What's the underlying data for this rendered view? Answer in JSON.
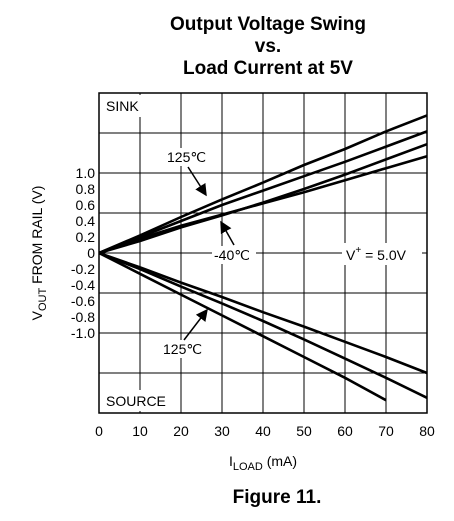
{
  "chart_data": {
    "type": "line",
    "title": [
      "Output Voltage Swing",
      "vs.",
      "Load Current at 5V"
    ],
    "xlabel": {
      "main": "I",
      "sub": "LOAD",
      "rest": " (mA)"
    },
    "ylabel": {
      "main": "V",
      "sub": "OUT",
      "rest": " FROM RAIL (V)"
    },
    "caption": "Figure 11.",
    "x": [
      0,
      10,
      20,
      30,
      40,
      50,
      60,
      70,
      80
    ],
    "series": [
      {
        "color": "#000000",
        "values": [
          0,
          0.22,
          0.45,
          0.67,
          0.88,
          1.1,
          1.3,
          1.52,
          1.72
        ]
      },
      {
        "color": "#000000",
        "values": [
          0,
          0.2,
          0.4,
          0.6,
          0.78,
          0.96,
          1.14,
          1.33,
          1.52
        ]
      },
      {
        "color": "#000000",
        "values": [
          0,
          0.15,
          0.32,
          0.47,
          0.63,
          0.8,
          0.98,
          1.17,
          1.36
        ]
      },
      {
        "color": "#000000",
        "values": [
          0,
          0.18,
          0.34,
          0.48,
          0.62,
          0.76,
          0.91,
          1.06,
          1.21
        ]
      },
      {
        "color": "#000000",
        "values": [
          0,
          -0.26,
          -0.52,
          -0.78,
          -1.04,
          -1.3,
          -1.56,
          -1.84,
          null
        ]
      },
      {
        "color": "#000000",
        "values": [
          0,
          -0.2,
          -0.42,
          -0.63,
          -0.85,
          -1.08,
          -1.32,
          -1.56,
          -1.81
        ]
      },
      {
        "color": "#000000",
        "values": [
          0,
          -0.18,
          -0.37,
          -0.55,
          -0.74,
          -0.92,
          -1.11,
          -1.3,
          -1.5
        ]
      }
    ],
    "xlim": [
      0,
      80
    ],
    "xticks": [
      0,
      10,
      20,
      30,
      40,
      50,
      60,
      70,
      80
    ],
    "ylim": [
      -2,
      2
    ],
    "yticks": [
      {
        "value": 1,
        "label": "1.0"
      },
      0.8,
      0.6,
      0.4,
      0.2,
      0,
      -0.2,
      -0.4,
      -0.6,
      -0.8,
      {
        "value": -1,
        "label": "-1.0"
      }
    ],
    "ygrid": [
      -1.5,
      -1,
      -0.5,
      0,
      0.5,
      1,
      1.5
    ],
    "grid": true,
    "annotations": {
      "sink": "SINK",
      "source": "SOURCE",
      "hot_top": "125℃",
      "cold": "-40℃",
      "hot_bottom": "125℃",
      "supply": {
        "main": "V",
        "sup": "+",
        "rest": " = 5.0V"
      }
    }
  }
}
